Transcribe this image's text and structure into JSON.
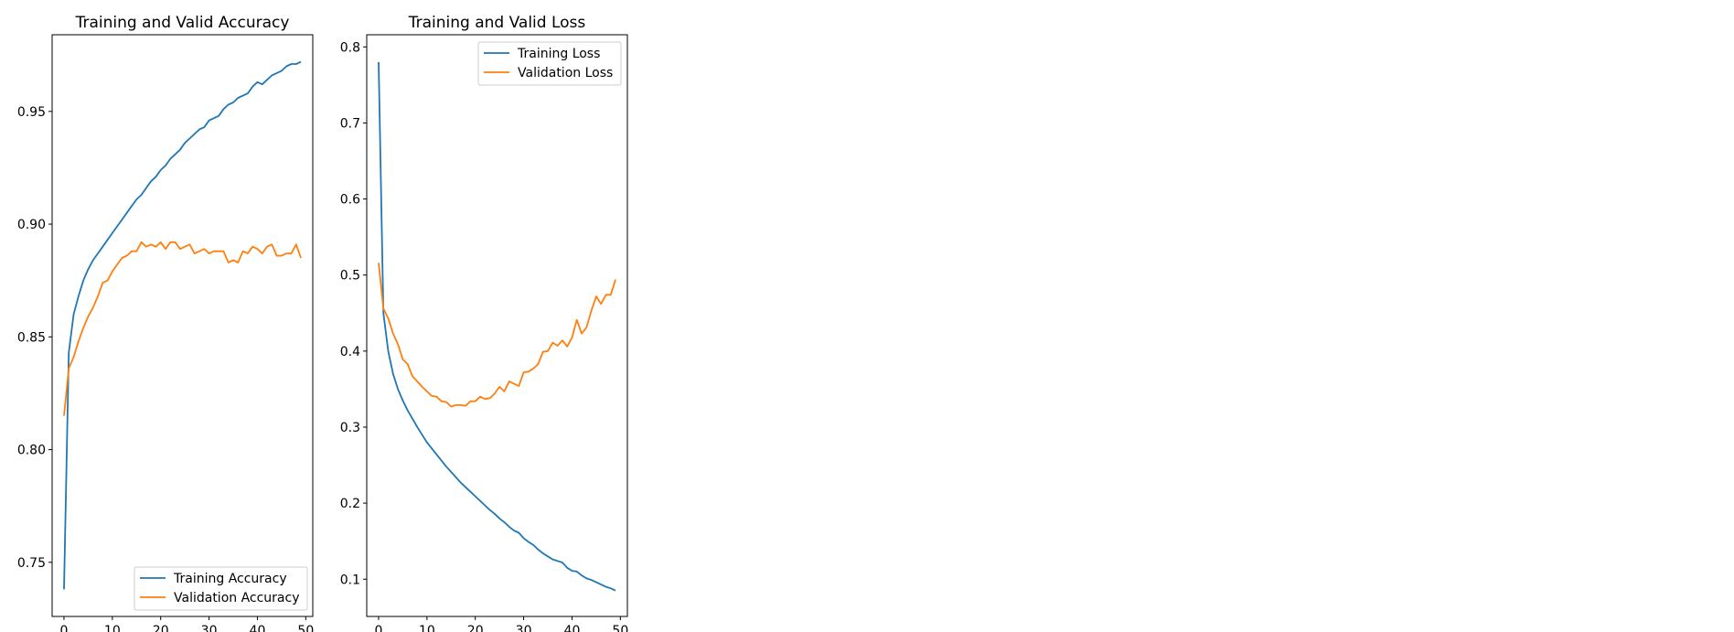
{
  "chart_data": [
    {
      "type": "line",
      "title": "Training and Valid Accuracy",
      "xlabel": "",
      "ylabel": "",
      "xlim": [
        -2.45,
        51.45
      ],
      "ylim": [
        0.726,
        0.984
      ],
      "xticks": [
        0,
        10,
        20,
        30,
        40,
        50
      ],
      "yticks": [
        0.75,
        0.8,
        0.85,
        0.9,
        0.95
      ],
      "ytick_labels": [
        "0.75",
        "0.80",
        "0.85",
        "0.90",
        "0.95"
      ],
      "grid": false,
      "legend_position": "lower-right",
      "series": [
        {
          "name": "Training Accuracy",
          "color": "#1f77b4",
          "values": [
            0.738,
            0.843,
            0.86,
            0.868,
            0.875,
            0.88,
            0.884,
            0.887,
            0.89,
            0.893,
            0.896,
            0.899,
            0.902,
            0.905,
            0.908,
            0.911,
            0.913,
            0.916,
            0.919,
            0.921,
            0.924,
            0.926,
            0.929,
            0.931,
            0.933,
            0.936,
            0.938,
            0.94,
            0.942,
            0.943,
            0.946,
            0.947,
            0.948,
            0.951,
            0.953,
            0.954,
            0.956,
            0.957,
            0.958,
            0.961,
            0.963,
            0.962,
            0.964,
            0.966,
            0.967,
            0.968,
            0.97,
            0.971,
            0.971,
            0.972
          ]
        },
        {
          "name": "Validation Accuracy",
          "color": "#ff7f0e",
          "values": [
            0.815,
            0.836,
            0.841,
            0.848,
            0.854,
            0.859,
            0.863,
            0.868,
            0.874,
            0.875,
            0.879,
            0.882,
            0.885,
            0.886,
            0.888,
            0.888,
            0.892,
            0.89,
            0.891,
            0.89,
            0.892,
            0.889,
            0.892,
            0.892,
            0.889,
            0.89,
            0.891,
            0.887,
            0.888,
            0.889,
            0.887,
            0.888,
            0.888,
            0.888,
            0.883,
            0.884,
            0.883,
            0.888,
            0.887,
            0.89,
            0.889,
            0.887,
            0.89,
            0.891,
            0.886,
            0.886,
            0.887,
            0.887,
            0.891,
            0.885
          ]
        }
      ]
    },
    {
      "type": "line",
      "title": "Training and Valid Loss",
      "xlabel": "",
      "ylabel": "",
      "xlim": [
        -2.45,
        51.45
      ],
      "ylim": [
        0.051,
        0.816
      ],
      "xticks": [
        0,
        10,
        20,
        30,
        40,
        50
      ],
      "yticks": [
        0.1,
        0.2,
        0.3,
        0.4,
        0.5,
        0.6,
        0.7,
        0.8
      ],
      "ytick_labels": [
        "0.1",
        "0.2",
        "0.3",
        "0.4",
        "0.5",
        "0.6",
        "0.7",
        "0.8"
      ],
      "grid": false,
      "legend_position": "upper-right",
      "series": [
        {
          "name": "Training Loss",
          "color": "#1f77b4",
          "values": [
            0.78,
            0.45,
            0.4,
            0.37,
            0.35,
            0.335,
            0.322,
            0.311,
            0.3,
            0.29,
            0.28,
            0.272,
            0.264,
            0.256,
            0.248,
            0.241,
            0.234,
            0.227,
            0.221,
            0.215,
            0.209,
            0.203,
            0.197,
            0.191,
            0.186,
            0.18,
            0.175,
            0.169,
            0.164,
            0.161,
            0.154,
            0.149,
            0.145,
            0.139,
            0.134,
            0.13,
            0.126,
            0.124,
            0.122,
            0.115,
            0.111,
            0.11,
            0.105,
            0.101,
            0.099,
            0.096,
            0.093,
            0.09,
            0.088,
            0.085
          ]
        },
        {
          "name": "Validation Loss",
          "color": "#ff7f0e",
          "values": [
            0.516,
            0.456,
            0.443,
            0.423,
            0.409,
            0.389,
            0.383,
            0.367,
            0.36,
            0.353,
            0.347,
            0.341,
            0.34,
            0.334,
            0.333,
            0.327,
            0.329,
            0.329,
            0.328,
            0.334,
            0.334,
            0.34,
            0.337,
            0.338,
            0.344,
            0.353,
            0.347,
            0.36,
            0.357,
            0.354,
            0.372,
            0.373,
            0.377,
            0.383,
            0.399,
            0.4,
            0.411,
            0.407,
            0.414,
            0.406,
            0.418,
            0.441,
            0.423,
            0.431,
            0.453,
            0.472,
            0.462,
            0.474,
            0.474,
            0.494
          ]
        }
      ]
    }
  ]
}
